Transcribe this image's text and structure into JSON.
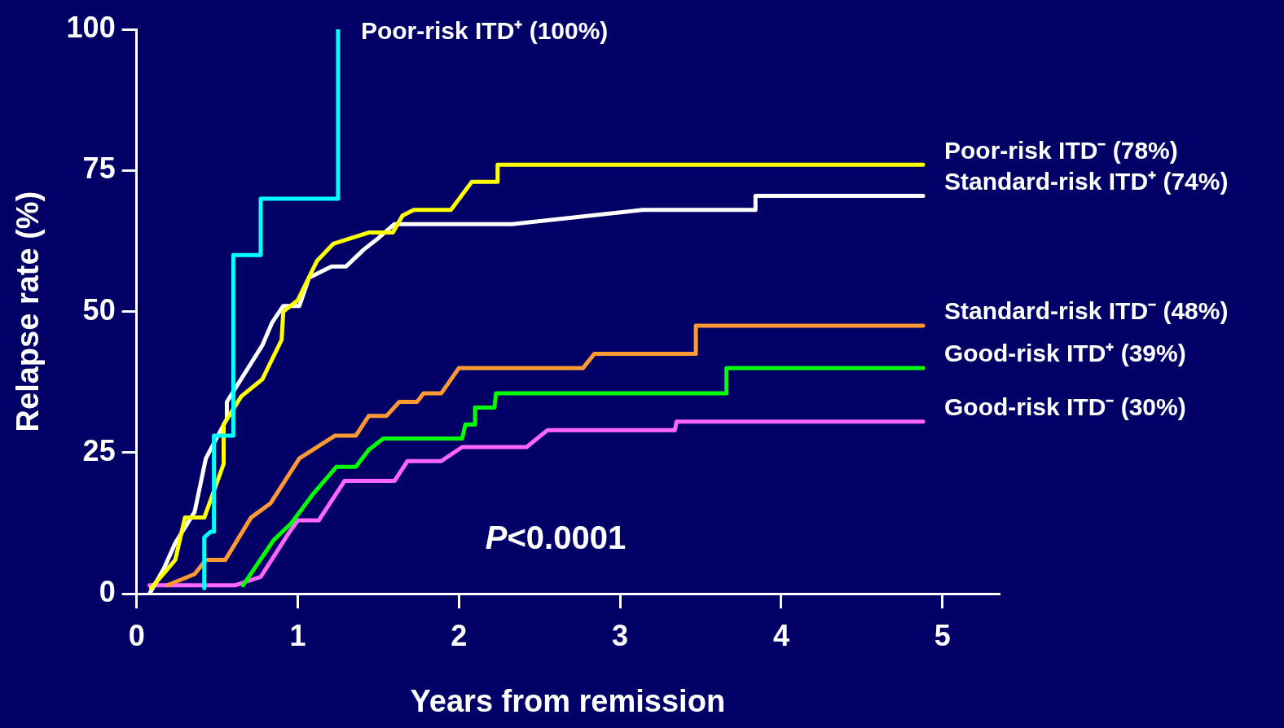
{
  "chart_data": {
    "type": "line",
    "xlabel": "Years from remission",
    "ylabel": "Relapse rate (%)",
    "xlim": [
      0,
      5.35
    ],
    "xticks": [
      0,
      1,
      2,
      3,
      4,
      5
    ],
    "ylim": [
      0,
      100
    ],
    "yticks": [
      0,
      25,
      50,
      75,
      100
    ],
    "grid": false,
    "legend": false,
    "marker": "none",
    "line_style": "solid",
    "annotations": [
      "P<0.0001"
    ],
    "series": [
      {
        "name": "Poor-risk ITD⁺ (100%)",
        "color": "#00ffff",
        "x": [
          0.42,
          0.42,
          0.46,
          0.48,
          0.48,
          0.6,
          0.6,
          0.77,
          0.77,
          1.25,
          1.25
        ],
        "values": [
          1,
          10,
          11,
          11,
          28,
          28,
          60,
          60,
          70,
          70,
          100
        ]
      },
      {
        "name": "Poor-risk ITD⁻ (78%)",
        "color": "#ffff00",
        "x": [
          0.09,
          0.24,
          0.3,
          0.42,
          0.54,
          0.54,
          0.65,
          0.78,
          0.9,
          0.91,
          1.0,
          1.12,
          1.22,
          1.44,
          1.59,
          1.65,
          1.72,
          1.95,
          2.08,
          2.24,
          2.24,
          4.88
        ],
        "values": [
          1,
          6,
          13.5,
          13.5,
          23,
          30,
          35,
          38,
          45,
          50,
          52,
          59,
          62,
          64,
          64,
          67,
          68,
          68,
          73,
          73,
          76,
          76
        ]
      },
      {
        "name": "Standard-risk ITD⁺ (74%)",
        "color": "#ffffff",
        "x": [
          0.08,
          0.17,
          0.24,
          0.36,
          0.43,
          0.56,
          0.56,
          0.78,
          0.84,
          0.91,
          1.01,
          1.07,
          1.21,
          1.3,
          1.41,
          1.5,
          1.6,
          2.33,
          3.14,
          3.84,
          3.84,
          4.88
        ],
        "values": [
          0,
          4.5,
          9,
          14.5,
          24,
          31,
          34,
          44,
          48,
          51,
          51,
          56,
          58,
          58,
          61,
          63,
          65.5,
          65.5,
          68,
          68,
          70.5,
          70.5
        ]
      },
      {
        "name": "Standard-risk ITD⁻ (48%)",
        "color": "#ff9933",
        "x": [
          0.19,
          0.36,
          0.43,
          0.55,
          0.71,
          0.83,
          1.01,
          1.23,
          1.36,
          1.44,
          1.55,
          1.63,
          1.74,
          1.78,
          1.89,
          2.0,
          2.77,
          2.84,
          3.47,
          3.47,
          4.88
        ],
        "values": [
          1.5,
          3.5,
          6,
          6,
          13.5,
          16,
          24,
          28,
          28,
          31.5,
          31.5,
          34,
          34,
          35.5,
          35.5,
          40,
          40,
          42.5,
          42.5,
          47.5,
          47.5
        ]
      },
      {
        "name": "Good-risk ITD⁺ (39%)",
        "color": "#00ff00",
        "x": [
          0.66,
          0.85,
          0.96,
          1.09,
          1.24,
          1.36,
          1.44,
          1.53,
          2.02,
          2.04,
          2.1,
          2.1,
          2.22,
          2.23,
          3.66,
          3.66,
          4.88
        ],
        "values": [
          1.5,
          9.5,
          12.5,
          17.5,
          22.5,
          22.5,
          25.5,
          27.5,
          27.5,
          30,
          30,
          33,
          33,
          35.5,
          35.5,
          40,
          40
        ]
      },
      {
        "name": "Good-risk ITD⁻ (30%)",
        "color": "#ff66ff",
        "x": [
          0.08,
          0.61,
          0.77,
          0.95,
          1.0,
          1.13,
          1.29,
          1.6,
          1.68,
          1.89,
          2.02,
          2.42,
          2.55,
          3.34,
          3.35,
          4.88
        ],
        "values": [
          1.5,
          1.5,
          3,
          11,
          13,
          13,
          20,
          20,
          23.5,
          23.5,
          26,
          26,
          29,
          29,
          30.5,
          30.5
        ]
      }
    ]
  }
}
